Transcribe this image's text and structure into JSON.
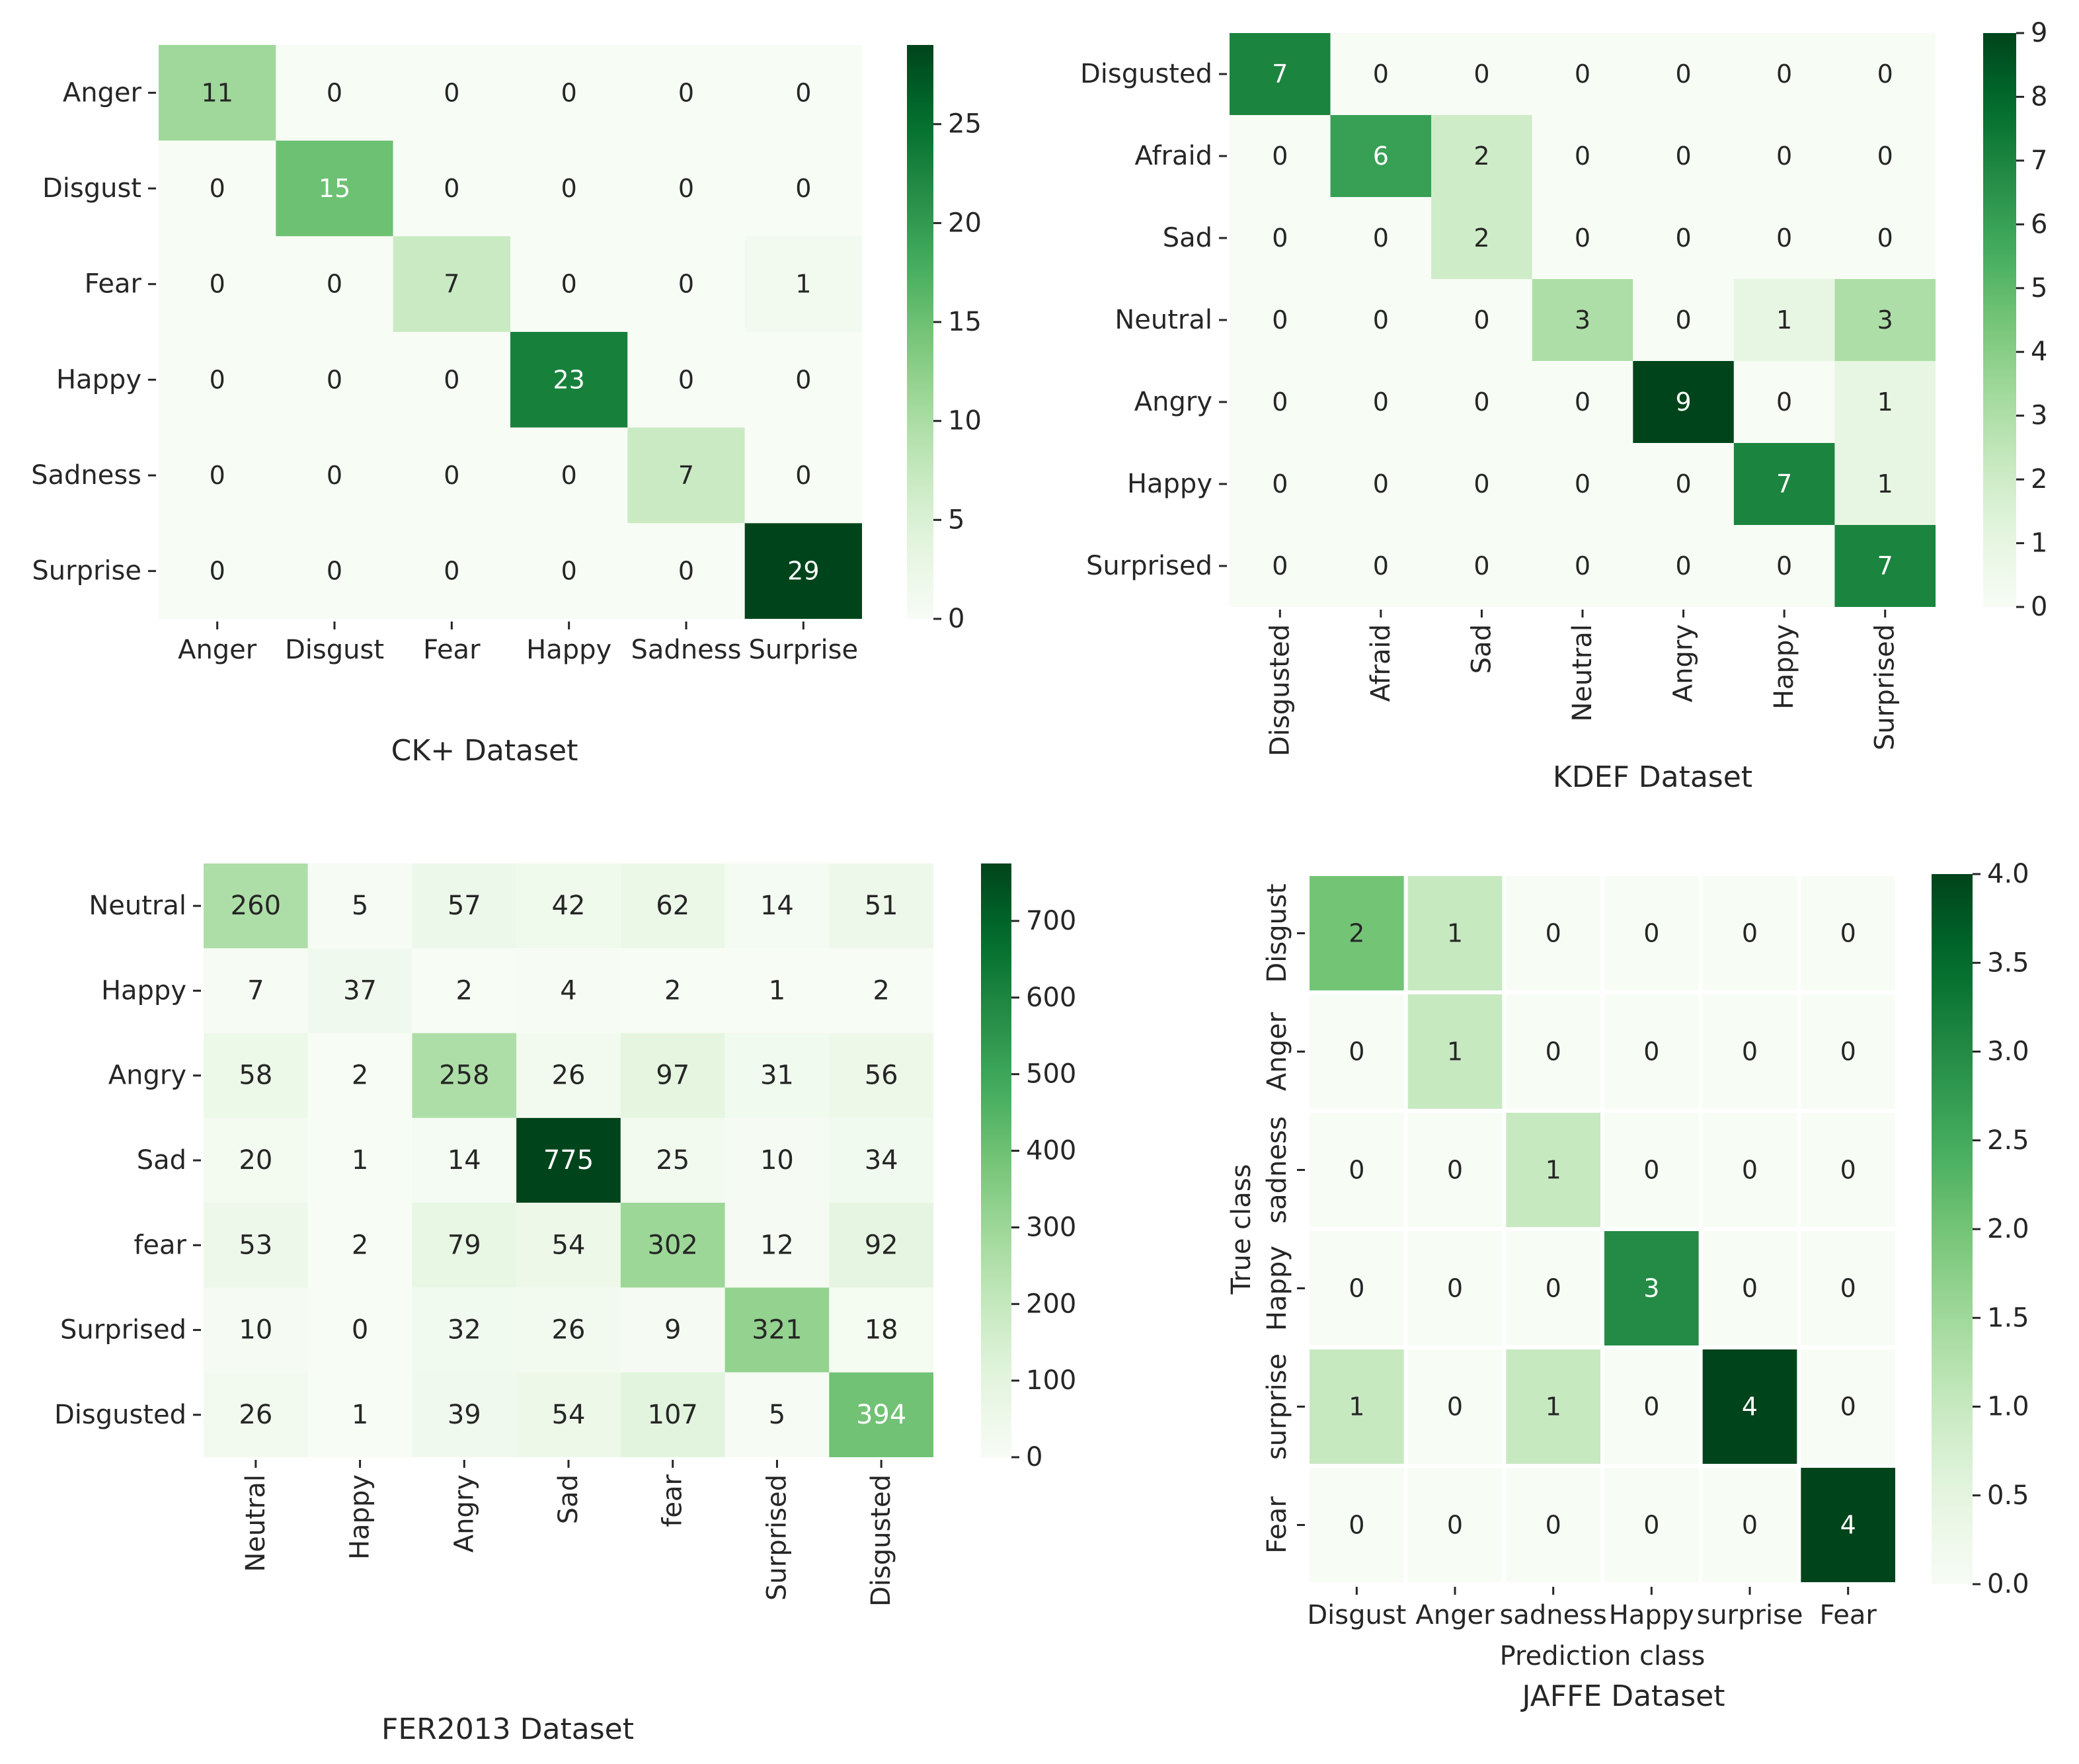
{
  "chart_data": [
    {
      "type": "heatmap",
      "title": "CK+ Dataset",
      "xlabel": "",
      "ylabel": "",
      "rows": [
        "Anger",
        "Disgust",
        "Fear",
        "Happy",
        "Sadness",
        "Surprise"
      ],
      "cols": [
        "Anger",
        "Disgust",
        "Fear",
        "Happy",
        "Sadness",
        "Surprise"
      ],
      "values": [
        [
          11,
          0,
          0,
          0,
          0,
          0
        ],
        [
          0,
          15,
          0,
          0,
          0,
          0
        ],
        [
          0,
          0,
          7,
          0,
          0,
          1
        ],
        [
          0,
          0,
          0,
          23,
          0,
          0
        ],
        [
          0,
          0,
          0,
          0,
          7,
          0
        ],
        [
          0,
          0,
          0,
          0,
          0,
          29
        ]
      ],
      "vmin": 0,
      "vmax": 29,
      "colorbar_ticks": [
        "0",
        "5",
        "10",
        "15",
        "20",
        "25"
      ],
      "colorbar_values": [
        0,
        5,
        10,
        15,
        20,
        25
      ],
      "xtick_rotation": "horizontal",
      "cell_gaps": false
    },
    {
      "type": "heatmap",
      "title": "KDEF Dataset",
      "xlabel": "",
      "ylabel": "",
      "rows": [
        "Disgusted",
        "Afraid",
        "Sad",
        "Neutral",
        "Angry",
        "Happy",
        "Surprised"
      ],
      "cols": [
        "Disgusted",
        "Afraid",
        "Sad",
        "Neutral",
        "Angry",
        "Happy",
        "Surprised"
      ],
      "values": [
        [
          7,
          0,
          0,
          0,
          0,
          0,
          0
        ],
        [
          0,
          6,
          2,
          0,
          0,
          0,
          0
        ],
        [
          0,
          0,
          2,
          0,
          0,
          0,
          0
        ],
        [
          0,
          0,
          0,
          3,
          0,
          1,
          3
        ],
        [
          0,
          0,
          0,
          0,
          9,
          0,
          1
        ],
        [
          0,
          0,
          0,
          0,
          0,
          7,
          1
        ],
        [
          0,
          0,
          0,
          0,
          0,
          0,
          7
        ]
      ],
      "vmin": 0,
      "vmax": 9,
      "colorbar_ticks": [
        "0",
        "1",
        "2",
        "3",
        "4",
        "5",
        "6",
        "7",
        "8",
        "9"
      ],
      "colorbar_values": [
        0,
        1,
        2,
        3,
        4,
        5,
        6,
        7,
        8,
        9
      ],
      "xtick_rotation": "vertical",
      "cell_gaps": false
    },
    {
      "type": "heatmap",
      "title": "FER2013 Dataset",
      "xlabel": "",
      "ylabel": "",
      "rows": [
        "Neutral",
        "Happy",
        "Angry",
        "Sad",
        "fear",
        "Surprised",
        "Disgusted"
      ],
      "cols": [
        "Neutral",
        "Happy",
        "Angry",
        "Sad",
        "fear",
        "Surprised",
        "Disgusted"
      ],
      "values": [
        [
          260,
          5,
          57,
          42,
          62,
          14,
          51
        ],
        [
          7,
          37,
          2,
          4,
          2,
          1,
          2
        ],
        [
          58,
          2,
          258,
          26,
          97,
          31,
          56
        ],
        [
          20,
          1,
          14,
          775,
          25,
          10,
          34
        ],
        [
          53,
          2,
          79,
          54,
          302,
          12,
          92
        ],
        [
          10,
          0,
          32,
          26,
          9,
          321,
          18
        ],
        [
          26,
          1,
          39,
          54,
          107,
          5,
          394
        ]
      ],
      "vmin": 0,
      "vmax": 775,
      "colorbar_ticks": [
        "0",
        "100",
        "200",
        "300",
        "400",
        "500",
        "600",
        "700"
      ],
      "colorbar_values": [
        0,
        100,
        200,
        300,
        400,
        500,
        600,
        700
      ],
      "xtick_rotation": "vertical",
      "cell_gaps": false
    },
    {
      "type": "heatmap",
      "title": "JAFFE Dataset",
      "xlabel": "Prediction class",
      "ylabel": "True class",
      "rows": [
        "Disgust",
        "Anger",
        "sadness",
        "Happy",
        "surprise",
        "Fear"
      ],
      "cols": [
        "Disgust",
        "Anger",
        "sadness",
        "Happy",
        "surprise",
        "Fear"
      ],
      "values": [
        [
          2,
          1,
          0,
          0,
          0,
          0
        ],
        [
          0,
          1,
          0,
          0,
          0,
          0
        ],
        [
          0,
          0,
          1,
          0,
          0,
          0
        ],
        [
          0,
          0,
          0,
          3,
          0,
          0
        ],
        [
          1,
          0,
          1,
          0,
          4,
          0
        ],
        [
          0,
          0,
          0,
          0,
          0,
          4
        ]
      ],
      "vmin": 0,
      "vmax": 4,
      "colorbar_ticks": [
        "0.0",
        "0.5",
        "1.0",
        "1.5",
        "2.0",
        "2.5",
        "3.0",
        "3.5",
        "4.0"
      ],
      "colorbar_values": [
        0,
        0.5,
        1,
        1.5,
        2,
        2.5,
        3,
        3.5,
        4
      ],
      "xtick_rotation": "horizontal",
      "ytick_rotation": "vertical",
      "cell_gaps": true
    }
  ]
}
